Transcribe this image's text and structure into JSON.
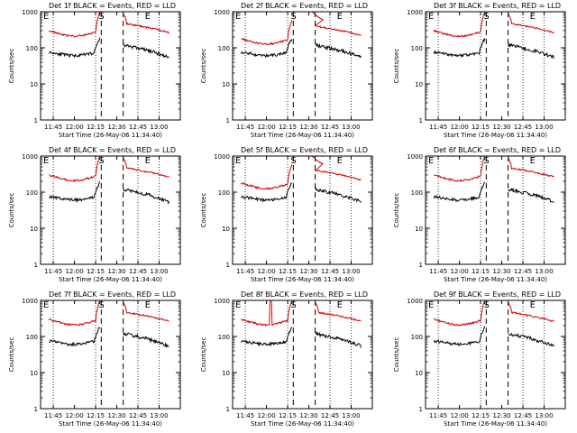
{
  "chart_data": [
    {
      "type": "line",
      "title": "Det 1f BLACK = Events, RED = LLD",
      "xlabel": "Start Time (26-May-06 11:34:40)",
      "ylabel": "Counts/sec",
      "yscale": "log",
      "ylim": [
        1,
        1000
      ],
      "xticks": [
        "11:45",
        "12:00",
        "12:15",
        "12:30",
        "12:45",
        "13:00"
      ],
      "yticks": [
        "1",
        "10",
        "100",
        "1000"
      ],
      "annotations": [
        "E",
        "S",
        "E"
      ],
      "series": [
        {
          "color": "#000000",
          "values": []
        },
        {
          "color": "#d00000",
          "values": []
        }
      ]
    },
    {
      "type": "line",
      "title": "Det 2f BLACK = Events, RED = LLD",
      "xlabel": "Start Time (26-May-06 11:34:40)",
      "ylabel": "Counts/sec",
      "yscale": "log",
      "ylim": [
        1,
        1000
      ],
      "xticks": [
        "11:45",
        "12:00",
        "12:15",
        "12:30",
        "12:45",
        "13:00"
      ],
      "yticks": [
        "1",
        "10",
        "100",
        "1000"
      ],
      "annotations": [
        "E",
        "S",
        "E"
      ],
      "series": [
        {
          "color": "#000000",
          "values": []
        },
        {
          "color": "#d00000",
          "values": []
        }
      ]
    },
    {
      "type": "line",
      "title": "Det 3f BLACK = Events, RED = LLD",
      "xlabel": "Start Time (26-May-06 11:34:40)",
      "ylabel": "Counts/sec",
      "yscale": "log",
      "ylim": [
        1,
        1000
      ],
      "xticks": [
        "11:45",
        "12:00",
        "12:15",
        "12:30",
        "12:45",
        "13:00"
      ],
      "yticks": [
        "1",
        "10",
        "100",
        "1000"
      ],
      "annotations": [
        "E",
        "S",
        "E"
      ],
      "series": [
        {
          "color": "#000000",
          "values": []
        },
        {
          "color": "#d00000",
          "values": []
        }
      ]
    },
    {
      "type": "line",
      "title": "Det 4f BLACK = Events, RED = LLD",
      "xlabel": "Start Time (26-May-06 11:34:40)",
      "ylabel": "Counts/sec",
      "yscale": "log",
      "ylim": [
        1,
        1000
      ],
      "xticks": [
        "11:45",
        "12:00",
        "12:15",
        "12:30",
        "12:45",
        "13:00"
      ],
      "yticks": [
        "1",
        "10",
        "100",
        "1000"
      ],
      "annotations": [
        "E",
        "S",
        "E"
      ],
      "series": [
        {
          "color": "#000000",
          "values": []
        },
        {
          "color": "#d00000",
          "values": []
        }
      ]
    },
    {
      "type": "line",
      "title": "Det 5f BLACK = Events, RED = LLD",
      "xlabel": "Start Time (26-May-06 11:34:40)",
      "ylabel": "Counts/sec",
      "yscale": "log",
      "ylim": [
        1,
        1000
      ],
      "xticks": [
        "11:45",
        "12:00",
        "12:15",
        "12:30",
        "12:45",
        "13:00"
      ],
      "yticks": [
        "1",
        "10",
        "100",
        "1000"
      ],
      "annotations": [
        "E",
        "S",
        "E"
      ],
      "series": [
        {
          "color": "#000000",
          "values": []
        },
        {
          "color": "#d00000",
          "values": []
        }
      ]
    },
    {
      "type": "line",
      "title": "Det 6f BLACK = Events, RED = LLD",
      "xlabel": "Start Time (26-May-06 11:34:40)",
      "ylabel": "Counts/sec",
      "yscale": "log",
      "ylim": [
        1,
        1000
      ],
      "xticks": [
        "11:45",
        "12:00",
        "12:15",
        "12:30",
        "12:45",
        "13:00"
      ],
      "yticks": [
        "1",
        "10",
        "100",
        "1000"
      ],
      "annotations": [
        "E",
        "S",
        "E"
      ],
      "series": [
        {
          "color": "#000000",
          "values": []
        },
        {
          "color": "#d00000",
          "values": []
        }
      ]
    },
    {
      "type": "line",
      "title": "Det 7f BLACK = Events, RED = LLD",
      "xlabel": "Start Time (26-May-06 11:34:40)",
      "ylabel": "Counts/sec",
      "yscale": "log",
      "ylim": [
        1,
        1000
      ],
      "xticks": [
        "11:45",
        "12:00",
        "12:15",
        "12:30",
        "12:45",
        "13:00"
      ],
      "yticks": [
        "1",
        "10",
        "100",
        "1000"
      ],
      "annotations": [
        "E",
        "S",
        "E"
      ],
      "series": [
        {
          "color": "#000000",
          "values": []
        },
        {
          "color": "#d00000",
          "values": []
        }
      ]
    },
    {
      "type": "line",
      "title": "Det 8f BLACK = Events, RED = LLD",
      "xlabel": "Start Time (26-May-06 11:34:40)",
      "ylabel": "Counts/sec",
      "yscale": "log",
      "ylim": [
        1,
        1000
      ],
      "xticks": [
        "11:45",
        "12:00",
        "12:15",
        "12:30",
        "12:45",
        "13:00"
      ],
      "yticks": [
        "1",
        "10",
        "100",
        "1000"
      ],
      "annotations": [
        "E",
        "S",
        "E"
      ],
      "series": [
        {
          "color": "#000000",
          "values": []
        },
        {
          "color": "#d00000",
          "values": []
        }
      ]
    },
    {
      "type": "line",
      "title": "Det 9f BLACK = Events, RED = LLD",
      "xlabel": "Start Time (26-May-06 11:34:40)",
      "ylabel": "Counts/sec",
      "yscale": "log",
      "ylim": [
        1,
        1000
      ],
      "xticks": [
        "11:45",
        "12:00",
        "12:15",
        "12:30",
        "12:45",
        "13:00"
      ],
      "yticks": [
        "1",
        "10",
        "100",
        "1000"
      ],
      "annotations": [
        "E",
        "S",
        "E"
      ],
      "series": [
        {
          "color": "#000000",
          "values": []
        },
        {
          "color": "#d00000",
          "values": []
        }
      ]
    }
  ]
}
